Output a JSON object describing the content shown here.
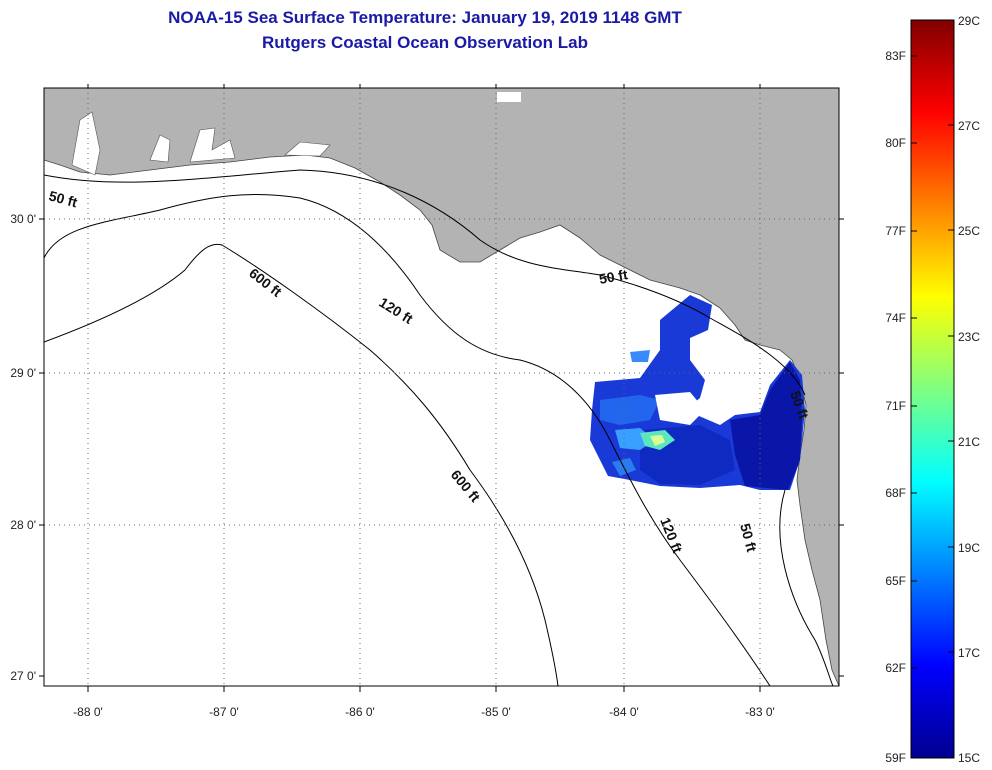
{
  "header": {
    "title": "NOAA-15 Sea Surface Temperature:  January 19, 2019 1148 GMT",
    "subtitle": "Rutgers Coastal Ocean Observation Lab"
  },
  "map": {
    "lon_range": [
      -88.33,
      -82.45
    ],
    "lat_range": [
      26.93,
      30.85
    ],
    "lon_ticks": [
      "-88 0'",
      "-87 0'",
      "-86 0'",
      "-85 0'",
      "-84 0'",
      "-83 0'"
    ],
    "lat_ticks": [
      "30 0'",
      "29 0'",
      "28 0'",
      "27 0'"
    ],
    "land_color": "#b3b3b3",
    "water_color": "#ffffff",
    "isobaths": [
      "50 ft",
      "120 ft",
      "600 ft"
    ],
    "depth_labels": {
      "a": "50 ft",
      "b": "50 ft",
      "c": "50 ft",
      "d": "50 ft",
      "e": "120 ft",
      "f": "120 ft",
      "g": "600 ft",
      "h": "600 ft"
    }
  },
  "colorbar": {
    "colormap": "jet",
    "min_c": 15,
    "max_c": 29,
    "celsius_labels": [
      "29C",
      "27C",
      "25C",
      "23C",
      "21C",
      "19C",
      "17C",
      "15C"
    ],
    "fahrenheit_labels": [
      "83F",
      "80F",
      "77F",
      "74F",
      "71F",
      "68F",
      "65F",
      "62F",
      "59F"
    ]
  }
}
